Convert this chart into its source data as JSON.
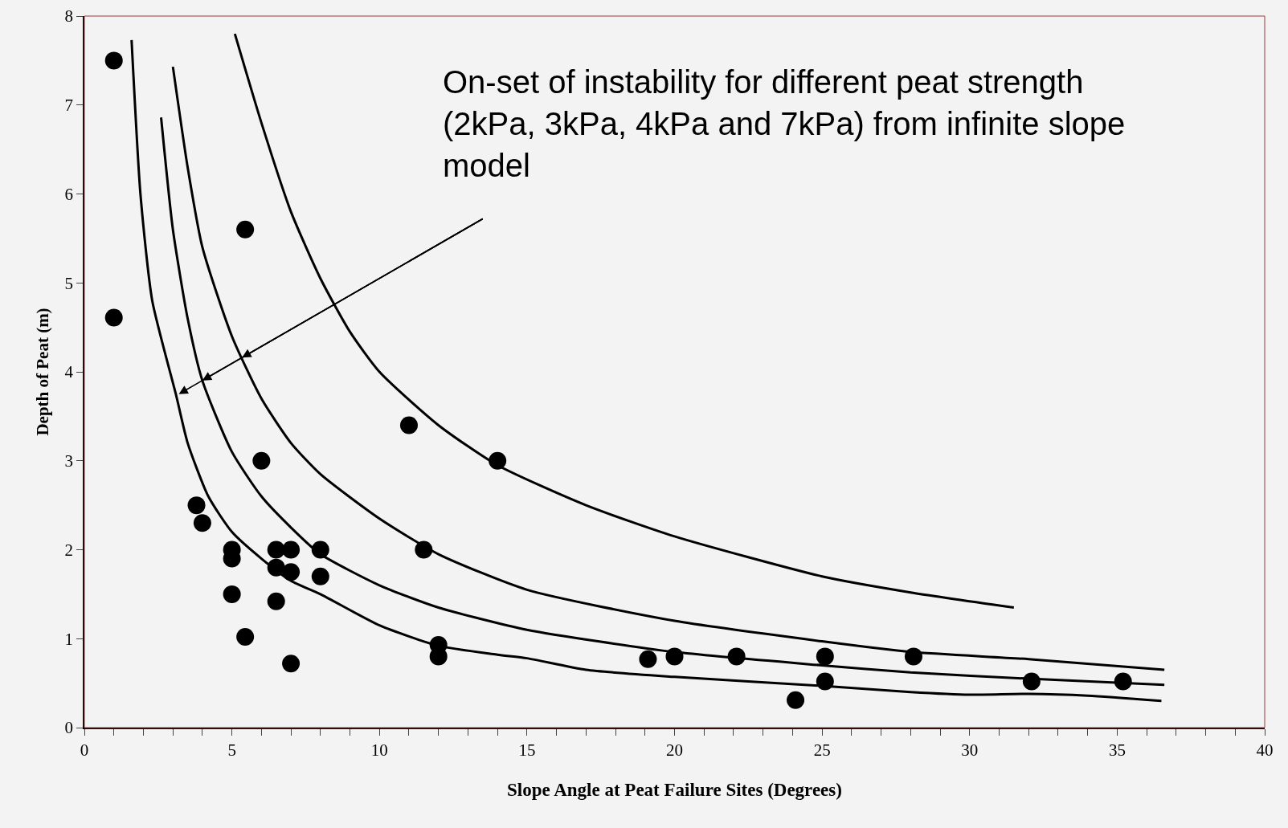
{
  "chart_data": {
    "type": "scatter",
    "xlabel": "Slope Angle at Peat Failure Sites (Degrees)",
    "ylabel": "Depth of Peat (m)",
    "annotations": [
      {
        "text": "On-set of instability for different peat strength (2kPa, 3kPa, 4kPa and 7kPa) from infinite slope model",
        "x": 3.2,
        "y": 3.75
      }
    ],
    "xlim": [
      0,
      40
    ],
    "ylim": [
      0,
      8
    ],
    "xticks": [
      0,
      {
        "value": 1,
        "label": null
      },
      {
        "value": 2,
        "label": null
      },
      {
        "value": 3,
        "label": null
      },
      {
        "value": 4,
        "label": null
      },
      5,
      {
        "value": 6,
        "label": null
      },
      {
        "value": 7,
        "label": null
      },
      {
        "value": 8,
        "label": null
      },
      {
        "value": 9,
        "label": null
      },
      10,
      {
        "value": 11,
        "label": null
      },
      {
        "value": 12,
        "label": null
      },
      {
        "value": 13,
        "label": null
      },
      {
        "value": 14,
        "label": null
      },
      15,
      {
        "value": 16,
        "label": null
      },
      {
        "value": 17,
        "label": null
      },
      {
        "value": 18,
        "label": null
      },
      {
        "value": 19,
        "label": null
      },
      20,
      {
        "value": 21,
        "label": null
      },
      {
        "value": 22,
        "label": null
      },
      {
        "value": 23,
        "label": null
      },
      {
        "value": 24,
        "label": null
      },
      25,
      {
        "value": 26,
        "label": null
      },
      {
        "value": 27,
        "label": null
      },
      {
        "value": 28,
        "label": null
      },
      {
        "value": 29,
        "label": null
      },
      30,
      {
        "value": 31,
        "label": null
      },
      {
        "value": 32,
        "label": null
      },
      {
        "value": 33,
        "label": null
      },
      {
        "value": 34,
        "label": null
      },
      35,
      {
        "value": 36,
        "label": null
      },
      {
        "value": 37,
        "label": null
      },
      {
        "value": 38,
        "label": null
      },
      {
        "value": 39,
        "label": null
      },
      40
    ],
    "yticks": [
      0,
      1,
      2,
      3,
      4,
      5,
      6,
      7,
      8
    ],
    "grid": false,
    "series": [
      {
        "type": "line",
        "marker": "none",
        "color": "#000000",
        "x": [
          1.6,
          1.9,
          2.3,
          3.1,
          3.5,
          4.2,
          5,
          6,
          7,
          8,
          10,
          12,
          14,
          15,
          17,
          20,
          25,
          28,
          30,
          32,
          34,
          36.5
        ],
        "values": [
          7.73,
          6.0,
          4.8,
          3.75,
          3.2,
          2.6,
          2.2,
          1.9,
          1.65,
          1.5,
          1.15,
          0.92,
          0.82,
          0.78,
          0.65,
          0.57,
          0.47,
          0.4,
          0.37,
          0.38,
          0.36,
          0.3
        ]
      },
      {
        "type": "line",
        "marker": "none",
        "color": "#000000",
        "x": [
          2.6,
          3,
          3.5,
          4,
          5,
          6,
          7,
          8,
          10,
          12,
          15,
          20,
          25,
          28,
          32,
          36.6
        ],
        "values": [
          6.86,
          5.6,
          4.6,
          3.9,
          3.1,
          2.6,
          2.25,
          1.95,
          1.6,
          1.35,
          1.1,
          0.85,
          0.7,
          0.62,
          0.55,
          0.48
        ]
      },
      {
        "type": "line",
        "marker": "none",
        "color": "#000000",
        "x": [
          3.0,
          3.5,
          4,
          5,
          6,
          7,
          8,
          10,
          12,
          15,
          20,
          25,
          28,
          32,
          36.6
        ],
        "values": [
          7.43,
          6.3,
          5.4,
          4.4,
          3.7,
          3.2,
          2.85,
          2.35,
          1.95,
          1.55,
          1.2,
          0.97,
          0.85,
          0.77,
          0.65
        ]
      },
      {
        "type": "line",
        "marker": "none",
        "color": "#000000",
        "x": [
          5.1,
          6,
          7,
          8,
          9,
          10,
          12,
          14,
          17,
          20,
          25,
          28,
          31.5
        ],
        "values": [
          7.8,
          6.8,
          5.8,
          5.05,
          4.45,
          4.0,
          3.4,
          2.95,
          2.5,
          2.15,
          1.7,
          1.52,
          1.35
        ]
      },
      {
        "marker": "circle",
        "color": "#000000",
        "x": [
          1,
          1,
          5.45,
          6,
          3.8,
          4,
          5,
          5,
          5,
          5.45,
          6.5,
          6.5,
          7,
          7,
          6.5,
          7,
          8,
          8,
          11,
          14,
          11.5,
          12,
          12,
          19.1,
          20,
          22.1,
          24.1,
          25.1,
          25.1,
          28.1,
          32.1,
          35.2
        ],
        "values": [
          7.5,
          4.61,
          5.6,
          3.0,
          2.5,
          2.3,
          2.0,
          1.9,
          1.5,
          1.02,
          2.0,
          1.8,
          2.0,
          1.75,
          1.42,
          0.72,
          2.0,
          1.7,
          3.4,
          3.0,
          2.0,
          0.93,
          0.8,
          0.77,
          0.8,
          0.8,
          0.31,
          0.8,
          0.52,
          0.8,
          0.52,
          0.52
        ]
      }
    ]
  }
}
